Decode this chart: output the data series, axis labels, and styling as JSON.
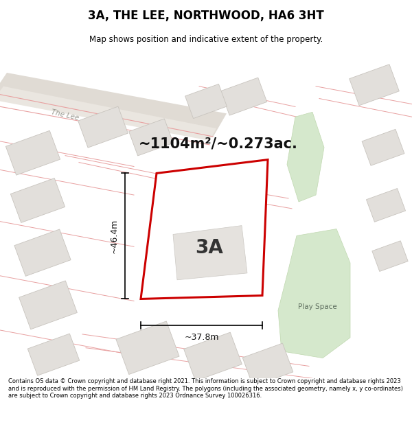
{
  "title": "3A, THE LEE, NORTHWOOD, HA6 3HT",
  "subtitle": "Map shows position and indicative extent of the property.",
  "footer": "Contains OS data © Crown copyright and database right 2021. This information is subject to Crown copyright and database rights 2023 and is reproduced with the permission of HM Land Registry. The polygons (including the associated geometry, namely x, y co-ordinates) are subject to Crown copyright and database rights 2023 Ordnance Survey 100026316.",
  "area_label": "~1104m²/~0.273ac.",
  "label_3A": "3A",
  "dim_height": "~46.4m",
  "dim_width": "~37.8m",
  "play_space": "Play Space",
  "the_lee": "The Lee",
  "bg_color": "#f0eeeb",
  "building_fill": "#e2dfdb",
  "building_edge": "#c8c4be",
  "green_fill": "#d5e8cc",
  "green_edge": "#c0d8b0",
  "red_plot": "#cc0000",
  "pink_line": "#e8a0a0",
  "road_fill": "#e0dbd4",
  "road_fill2": "#eae6e0",
  "road_label_color": "#999990",
  "dim_color": "#111111",
  "label_color": "#333333",
  "area_color": "#111111",
  "white": "#ffffff"
}
